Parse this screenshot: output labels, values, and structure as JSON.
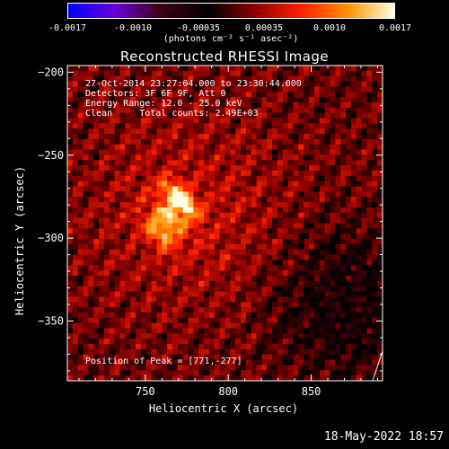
{
  "colorbar": {
    "ticks": [
      "-0.0017",
      "-0.0010",
      "-0.00035",
      "0.00035",
      "0.0010",
      "0.0017"
    ],
    "unit_label": "(photons cm⁻² s⁻¹ asec⁻²)",
    "colors": [
      "#0000ff",
      "#6a00d8",
      "#3c0010",
      "#000000",
      "#8b0000",
      "#ff2000",
      "#ff9000",
      "#ffffe0"
    ]
  },
  "annotations": {
    "time_range": "27-Oct-2014 23:27:04.000 to 23:30:44.000",
    "detectors": "Detectors: 3F 6F 9F, Att 0",
    "energy_range": "Energy Range: 12.0 - 25.0 keV",
    "clean_counts": "Clean     Total counts: 2.49E+03",
    "peak_position": "Position of Peak = [771,-277]"
  },
  "date_stamp": "18-May-2022 18:57",
  "chart_data": {
    "type": "heatmap",
    "title": "Reconstructed RHESSI Image",
    "xlabel": "Heliocentric X (arcsec)",
    "ylabel": "Heliocentric Y (arcsec)",
    "xlim": [
      703,
      893
    ],
    "ylim": [
      -386,
      -196
    ],
    "zlim": [
      -0.0017,
      0.0017
    ],
    "xticks": [
      750,
      800,
      850
    ],
    "yticks": [
      -200,
      -250,
      -300,
      -350
    ],
    "peak": [
      771,
      -277
    ],
    "sources": [
      {
        "x": 771,
        "y": -277,
        "amplitude": 0.0017
      },
      {
        "x": 765,
        "y": -288,
        "amplitude": 0.0011
      },
      {
        "x": 758,
        "y": -297,
        "amplitude": 0.0009
      }
    ]
  }
}
